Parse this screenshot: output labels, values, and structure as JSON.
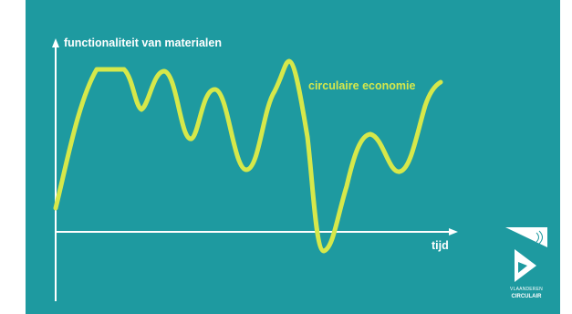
{
  "diagram": {
    "y_axis_label": "functionaliteit van materialen",
    "x_axis_label": "tijd",
    "curve_label": "circulaire economie"
  },
  "logo": {
    "line1": "VLAANDEREN",
    "line2": "CIRCULAIR"
  },
  "colors": {
    "background": "#1e9aa0",
    "curve": "#d6e84a",
    "axes": "#ffffff"
  }
}
